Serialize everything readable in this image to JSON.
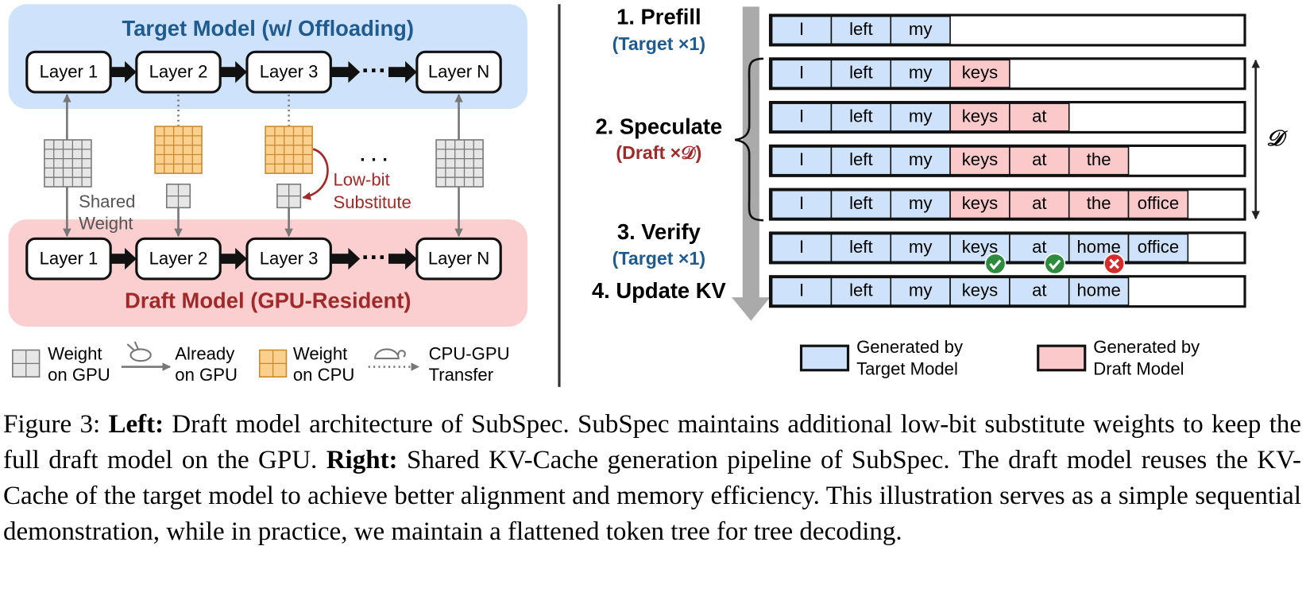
{
  "left": {
    "target_title": "Target Model (w/ Offloading)",
    "draft_title": "Draft Model (GPU-Resident)",
    "target_layers": [
      "Layer 1",
      "Layer 2",
      "Layer 3",
      "Layer N"
    ],
    "draft_layers": [
      "Layer 1",
      "Layer 2",
      "Layer 3",
      "Layer N"
    ],
    "ellipsis": "···",
    "column_ellipsis": "· · ·",
    "shared_weight": [
      "Shared",
      "Weight"
    ],
    "low_bit": [
      "Low-bit",
      "Substitute"
    ],
    "legend": [
      [
        "Weight",
        "on GPU"
      ],
      [
        "Already",
        "on GPU"
      ],
      [
        "Weight",
        "on CPU"
      ],
      [
        "CPU-GPU",
        "Transfer"
      ]
    ]
  },
  "right": {
    "colors": {
      "target": "#cfe2fb",
      "draft": "#fbc9c9"
    },
    "steps": [
      {
        "title": "1. Prefill",
        "note": "(Target ×1)"
      },
      {
        "title": "2. Speculate",
        "note": "(Draft ×𝒟)"
      },
      {
        "title": "3. Verify",
        "note": "(Target ×1)"
      },
      {
        "title": "4. Update KV"
      }
    ],
    "rows": [
      {
        "tokens": [
          "I",
          "left",
          "my"
        ]
      },
      {
        "tokens": [
          "I",
          "left",
          "my",
          "keys"
        ],
        "draft_from": 3
      },
      {
        "tokens": [
          "I",
          "left",
          "my",
          "keys",
          "at"
        ],
        "draft_from": 3
      },
      {
        "tokens": [
          "I",
          "left",
          "my",
          "keys",
          "at",
          "the"
        ],
        "draft_from": 3
      },
      {
        "tokens": [
          "I",
          "left",
          "my",
          "keys",
          "at",
          "the",
          "office"
        ],
        "draft_from": 3
      },
      {
        "tokens": [
          "I",
          "left",
          "my",
          "keys",
          "at",
          "home",
          "office"
        ]
      },
      {
        "tokens": [
          "I",
          "left",
          "my",
          "keys",
          "at",
          "home"
        ]
      }
    ],
    "checks": [
      {
        "row": 5,
        "token": 3,
        "result": "accept"
      },
      {
        "row": 5,
        "token": 4,
        "result": "accept"
      },
      {
        "row": 5,
        "token": 5,
        "result": "reject"
      }
    ],
    "depth_label": "𝒟",
    "legend": [
      {
        "label": [
          "Generated by",
          "Target Model"
        ],
        "source": "target"
      },
      {
        "label": [
          "Generated by",
          "Draft Model"
        ],
        "source": "draft"
      }
    ]
  },
  "caption": {
    "figure": "Figure 3:",
    "left_label": "Left:",
    "left_text": "Draft model architecture of SubSpec. SubSpec maintains additional low-bit substitute weights to keep the full draft model on the GPU.",
    "right_label": "Right:",
    "right_text": "Shared KV-Cache generation pipeline of SubSpec. The draft model reuses the KV-Cache of the target model to achieve better alignment and memory efficiency. This illustration serves as a simple sequential demonstration, while in practice, we maintain a flattened token tree for tree decoding."
  }
}
